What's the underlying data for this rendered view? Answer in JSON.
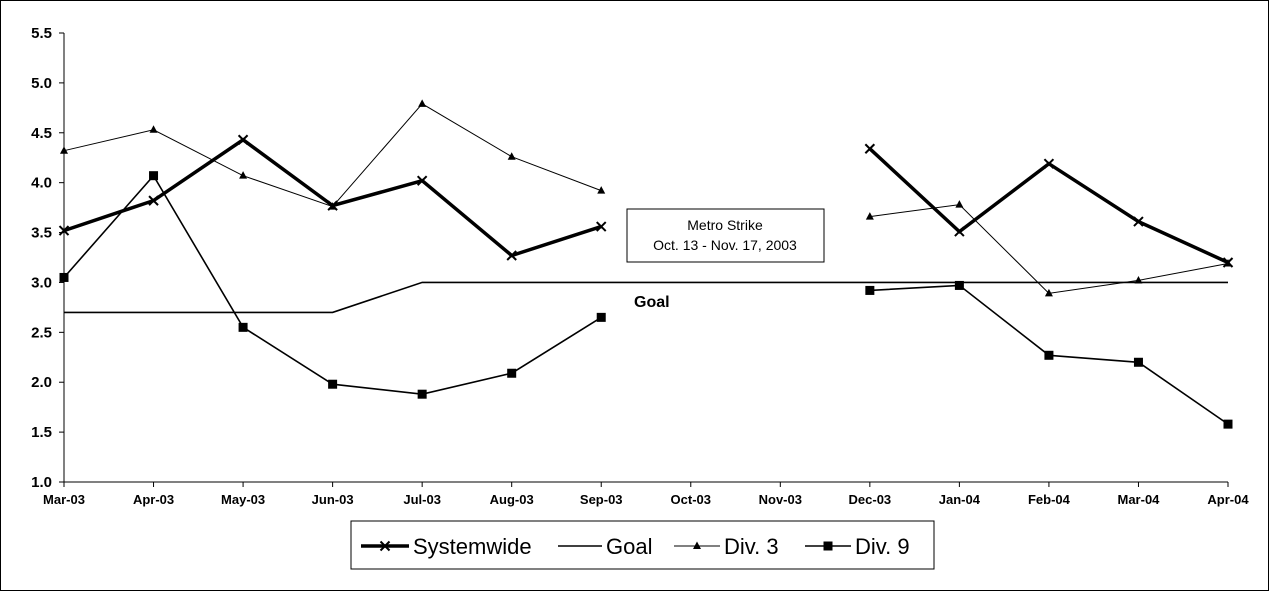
{
  "chart_data": {
    "type": "line",
    "categories": [
      "Mar-03",
      "Apr-03",
      "May-03",
      "Jun-03",
      "Jul-03",
      "Aug-03",
      "Sep-03",
      "Oct-03",
      "Nov-03",
      "Dec-03",
      "Jan-04",
      "Feb-04",
      "Mar-04",
      "Apr-04"
    ],
    "ylim": [
      1.0,
      5.5
    ],
    "yticks": [
      "1.0",
      "1.5",
      "2.0",
      "2.5",
      "3.0",
      "3.5",
      "4.0",
      "4.5",
      "5.0",
      "5.5"
    ],
    "grid": false,
    "legend_position": "bottom",
    "series": [
      {
        "name": "Systemwide",
        "marker": "x",
        "color": "#000000",
        "values": [
          3.52,
          3.82,
          4.43,
          3.77,
          4.02,
          3.27,
          3.56,
          null,
          null,
          4.34,
          3.51,
          4.19,
          3.61,
          3.2
        ]
      },
      {
        "name": "Goal",
        "marker": "none",
        "color": "#000000",
        "values": [
          2.7,
          2.7,
          2.7,
          2.7,
          3.0,
          3.0,
          3.0,
          3.0,
          3.0,
          3.0,
          3.0,
          3.0,
          3.0,
          3.0
        ]
      },
      {
        "name": "Div. 3",
        "marker": "triangle",
        "color": "#000000",
        "values": [
          4.32,
          4.53,
          4.07,
          3.76,
          4.79,
          4.26,
          3.92,
          null,
          null,
          3.66,
          3.78,
          2.89,
          3.02,
          3.19
        ]
      },
      {
        "name": "Div. 9",
        "marker": "square",
        "color": "#000000",
        "values": [
          3.05,
          4.07,
          2.55,
          1.98,
          1.88,
          2.09,
          2.65,
          null,
          null,
          2.92,
          2.97,
          2.27,
          2.2,
          1.58
        ]
      }
    ],
    "annotations": {
      "goal_label": "Goal",
      "strike_line1": "Metro Strike",
      "strike_line2": "Oct. 13 - Nov. 17, 2003"
    }
  }
}
